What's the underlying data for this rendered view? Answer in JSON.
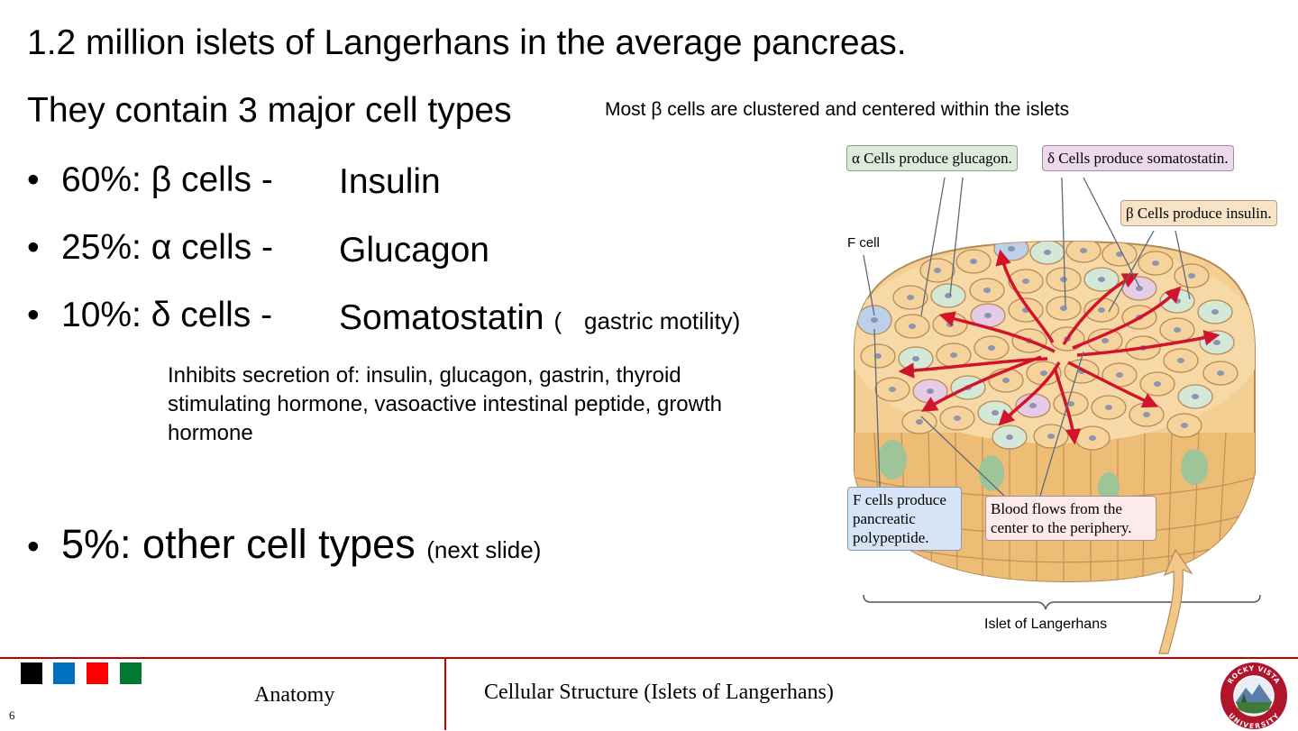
{
  "slide": {
    "line1": "1.2 million islets of Langerhans in the average pancreas.",
    "line2": "They contain 3 major cell types",
    "note_top": "Most β cells are clustered and centered within the islets",
    "bullets": [
      {
        "symbol": "•",
        "label": "60%: β cells  -",
        "hormone": "Insulin"
      },
      {
        "symbol": "•",
        "label": "25%: α cells  -",
        "hormone": "Glucagon"
      },
      {
        "symbol": "•",
        "label": "10%: δ cells  -",
        "hormone": "Somatostatin",
        "paren": "(",
        "note": "gastric motility)"
      }
    ],
    "inhibits": "Inhibits secretion of: insulin, glucagon, gastrin, thyroid stimulating hormone, vasoactive intestinal peptide, growth hormone",
    "bullet_other": {
      "symbol": "•",
      "label": "5%: other cell types",
      "note": "(next slide)"
    }
  },
  "figure": {
    "alpha_callout": "α Cells produce glucagon.",
    "delta_callout": "δ Cells produce somatostatin.",
    "beta_callout": "β Cells produce insulin.",
    "f_label": "F cell",
    "f_callout": "F cells produce pancreatic polypeptide.",
    "blood_callout": "Blood flows from the center to the periphery.",
    "islet_label": "Islet of Langerhans"
  },
  "footer": {
    "left": "Anatomy",
    "right": "Cellular Structure (Islets of  Langerhans)",
    "page_number": "6",
    "squares": [
      "#000000",
      "#0070c0",
      "#ff0000",
      "#007a33"
    ],
    "logo_text": "ROCKY VISTA UNIVERSITY"
  }
}
